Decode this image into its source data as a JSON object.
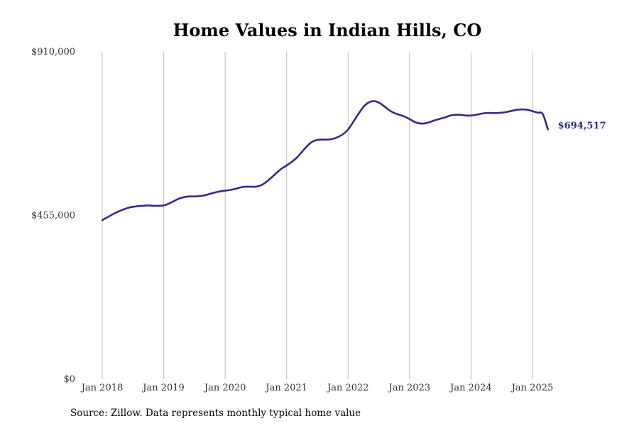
{
  "colors": {
    "line": "#2e2c8a",
    "grid": "#bbbbbb",
    "text": "#333333"
  },
  "source": "Source: Zillow. Data represents monthly typical home value",
  "chart_data": {
    "type": "line",
    "title": "Home Values in Indian Hills, CO",
    "xlabel": "",
    "ylabel": "",
    "ylim": [
      0,
      910000
    ],
    "yticks": [
      {
        "value": 0,
        "label": "$0"
      },
      {
        "value": 455000,
        "label": "$455,000"
      },
      {
        "value": 910000,
        "label": "$910,000"
      }
    ],
    "xticks": [
      {
        "value": "2018-01",
        "label": "Jan 2018"
      },
      {
        "value": "2019-01",
        "label": "Jan 2019"
      },
      {
        "value": "2020-01",
        "label": "Jan 2020"
      },
      {
        "value": "2021-01",
        "label": "Jan 2021"
      },
      {
        "value": "2022-01",
        "label": "Jan 2022"
      },
      {
        "value": "2023-01",
        "label": "Jan 2023"
      },
      {
        "value": "2024-01",
        "label": "Jan 2024"
      },
      {
        "value": "2025-01",
        "label": "Jan 2025"
      }
    ],
    "grid": "vertical",
    "last_value_label": "$694,517",
    "series": [
      {
        "x": [
          "2018-01",
          "2018-02",
          "2018-03",
          "2018-04",
          "2018-05",
          "2018-06",
          "2018-07",
          "2018-08",
          "2018-09",
          "2018-10",
          "2018-11",
          "2018-12",
          "2019-01",
          "2019-02",
          "2019-03",
          "2019-04",
          "2019-05",
          "2019-06",
          "2019-07",
          "2019-08",
          "2019-09",
          "2019-10",
          "2019-11",
          "2019-12",
          "2020-01",
          "2020-02",
          "2020-03",
          "2020-04",
          "2020-05",
          "2020-06",
          "2020-07",
          "2020-08",
          "2020-09",
          "2020-10",
          "2020-11",
          "2020-12",
          "2021-01",
          "2021-02",
          "2021-03",
          "2021-04",
          "2021-05",
          "2021-06",
          "2021-07",
          "2021-08",
          "2021-09",
          "2021-10",
          "2021-11",
          "2021-12",
          "2022-01",
          "2022-02",
          "2022-03",
          "2022-04",
          "2022-05",
          "2022-06",
          "2022-07",
          "2022-08",
          "2022-09",
          "2022-10",
          "2022-11",
          "2022-12",
          "2023-01",
          "2023-02",
          "2023-03",
          "2023-04",
          "2023-05",
          "2023-06",
          "2023-07",
          "2023-08",
          "2023-09",
          "2023-10",
          "2023-11",
          "2023-12",
          "2024-01",
          "2024-02",
          "2024-03",
          "2024-04",
          "2024-05",
          "2024-06",
          "2024-07",
          "2024-08",
          "2024-09",
          "2024-10",
          "2024-11",
          "2024-12",
          "2025-01",
          "2025-02",
          "2025-03",
          "2025-04"
        ],
        "values": [
          442000,
          450000,
          458000,
          465000,
          471000,
          476000,
          479000,
          481000,
          482000,
          483000,
          482000,
          482000,
          483000,
          488000,
          495000,
          502000,
          506000,
          508000,
          508000,
          509000,
          511000,
          515000,
          519000,
          522000,
          524000,
          526000,
          529000,
          533000,
          535000,
          535000,
          535000,
          539000,
          548000,
          560000,
          573000,
          585000,
          594000,
          604000,
          616000,
          632000,
          648000,
          660000,
          665000,
          666000,
          666000,
          668000,
          673000,
          681000,
          694000,
          715000,
          737000,
          757000,
          769000,
          773000,
          769000,
          759000,
          748000,
          740000,
          735000,
          730000,
          723000,
          715000,
          711000,
          711000,
          715000,
          720000,
          724000,
          728000,
          733000,
          735000,
          735000,
          733000,
          733000,
          735000,
          738000,
          740000,
          740000,
          740000,
          741000,
          743000,
          746000,
          749000,
          750000,
          749000,
          745000,
          741000,
          737000,
          694517
        ]
      }
    ]
  }
}
